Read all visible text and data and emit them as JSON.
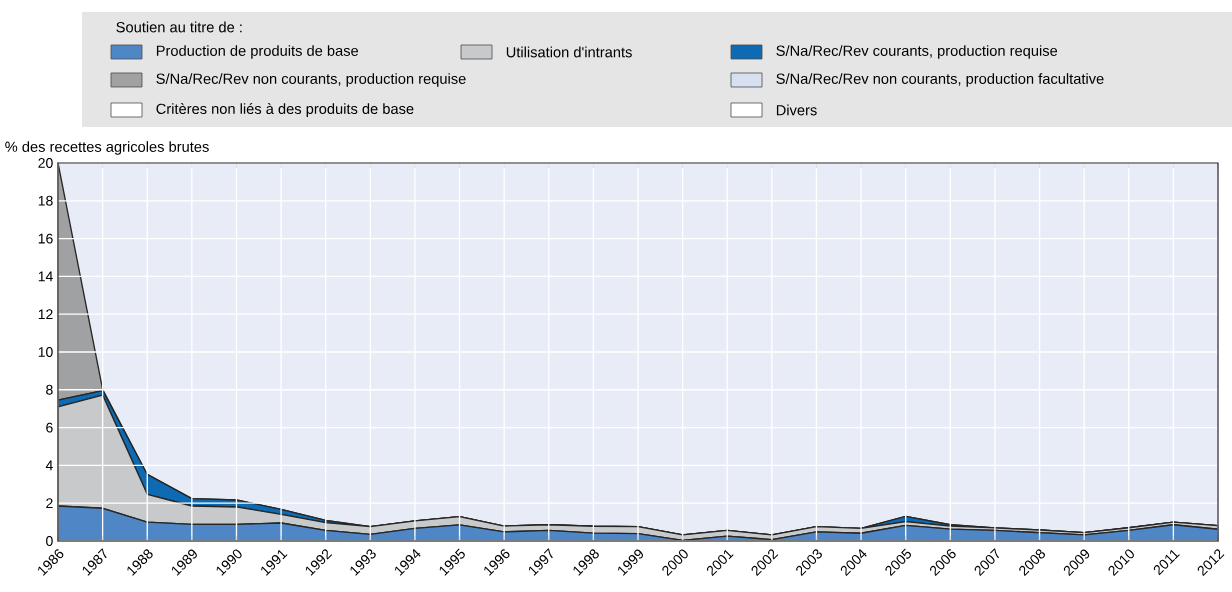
{
  "chart_data": {
    "type": "area",
    "stacked": true,
    "ylabel": "% des recettes agricoles brutes",
    "legend_title": "Soutien au titre de :",
    "legend": "top",
    "grid": true,
    "categories": [
      "1986",
      "1987",
      "1988",
      "1989",
      "1990",
      "1991",
      "1992",
      "1993",
      "1994",
      "1995",
      "1996",
      "1997",
      "1998",
      "1999",
      "2000",
      "2001",
      "2002",
      "2003",
      "2004",
      "2005",
      "2006",
      "2007",
      "2008",
      "2009",
      "2010",
      "2011",
      "2012"
    ],
    "ylim": [
      0,
      20
    ],
    "yticks": [
      0,
      2,
      4,
      6,
      8,
      10,
      12,
      14,
      16,
      18,
      20
    ],
    "series": [
      {
        "name": "Production de produits de base",
        "color": "#4f86c6",
        "values": [
          1.85,
          1.73,
          1.0,
          0.88,
          0.88,
          0.95,
          0.56,
          0.35,
          0.67,
          0.85,
          0.48,
          0.56,
          0.42,
          0.39,
          0.03,
          0.26,
          0.07,
          0.48,
          0.41,
          0.83,
          0.63,
          0.56,
          0.44,
          0.32,
          0.56,
          0.86,
          0.62
        ]
      },
      {
        "name": "Utilisation d'intrants",
        "color": "#c8c9cb",
        "values": [
          5.25,
          5.99,
          1.47,
          0.97,
          0.92,
          0.46,
          0.41,
          0.41,
          0.39,
          0.44,
          0.31,
          0.3,
          0.36,
          0.37,
          0.29,
          0.3,
          0.25,
          0.28,
          0.26,
          0.19,
          0.16,
          0.13,
          0.14,
          0.12,
          0.14,
          0.14,
          0.19
        ]
      },
      {
        "name": "S/Na/Rec/Rev courants, production requise",
        "color": "#0d6ab3",
        "values": [
          0.35,
          0.24,
          1.05,
          0.39,
          0.37,
          0.26,
          0.12,
          0,
          0,
          0,
          0,
          0,
          0,
          0,
          0,
          0,
          0,
          0,
          0,
          0.28,
          0.07,
          0,
          0,
          0,
          0,
          0,
          0
        ]
      },
      {
        "name": "S/Na/Rec/Rev non courants, production requise",
        "color": "#a0a1a3",
        "values": [
          12.55,
          0.06,
          0,
          0,
          0,
          0,
          0,
          0,
          0,
          0,
          0,
          0,
          0,
          0,
          0,
          0,
          0,
          0,
          0,
          0,
          0,
          0,
          0,
          0,
          0,
          0,
          0
        ]
      },
      {
        "name": "S/Na/Rec/Rev non courants, production facultative",
        "color": "#d6e0f0",
        "values": [
          null,
          null,
          null,
          null,
          null,
          null,
          null,
          null,
          null,
          null,
          null,
          null,
          null,
          null,
          null,
          null,
          null,
          null,
          null,
          null,
          null,
          null,
          null,
          null,
          null,
          null,
          null
        ]
      },
      {
        "name": "Critères non liés à des produits de base",
        "color": "#ffffff",
        "values": [
          null,
          null,
          null,
          null,
          null,
          null,
          null,
          null,
          null,
          null,
          null,
          null,
          null,
          null,
          null,
          null,
          null,
          null,
          null,
          null,
          null,
          null,
          null,
          null,
          null,
          null,
          null
        ]
      },
      {
        "name": "Divers",
        "color": "#ffffff",
        "values": [
          null,
          null,
          null,
          null,
          null,
          null,
          null,
          null,
          null,
          null,
          null,
          null,
          null,
          null,
          null,
          null,
          null,
          null,
          null,
          null,
          null,
          null,
          null,
          null,
          null,
          null,
          null
        ]
      }
    ]
  }
}
